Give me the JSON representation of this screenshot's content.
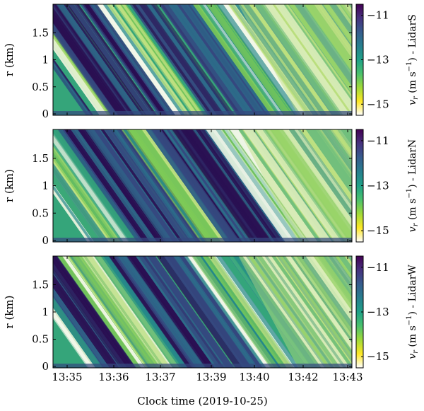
{
  "colormap": [
    "#440154",
    "#46327e",
    "#365c8d",
    "#277f8e",
    "#1fa187",
    "#4ac16d",
    "#a0da39",
    "#fde725",
    "#ffffff"
  ],
  "panel_colors": [
    "#2a0f52",
    "#35487f",
    "#2d6b8a",
    "#24878a",
    "#35a57a",
    "#7cc957",
    "#bde07f",
    "#f3f7e9"
  ],
  "chart_data": [
    {
      "type": "heatmap",
      "panel": "LidarS",
      "title": "",
      "xlabel": "Clock time (2019-10-25)",
      "ylabel": "r (km)",
      "ylim": [
        0,
        2.0
      ],
      "yticks": [
        0,
        0.5,
        1,
        1.5
      ],
      "ytick_labels": [
        "0",
        "0.5",
        "1",
        "1.5"
      ],
      "colorbar_label": "v_r (m s^-1) - LidarS",
      "colorbar_label_prefix": "v",
      "colorbar_label_sub": "r",
      "colorbar_label_mid": " (m s",
      "colorbar_label_sup": "−1",
      "colorbar_label_suffix": ") - LidarS",
      "colorbar_range": [
        -15.5,
        -10.5
      ],
      "colorbar_ticks": [
        -11,
        -13,
        -15
      ],
      "colorbar_tick_labels": [
        "−11",
        "−13",
        "−15"
      ],
      "colorscale": "viridis_r",
      "description_values": {
        "min": -15.5,
        "max": -10.5
      }
    },
    {
      "type": "heatmap",
      "panel": "LidarN",
      "title": "",
      "xlabel": "Clock time (2019-10-25)",
      "ylabel": "r (km)",
      "ylim": [
        0,
        2.0
      ],
      "yticks": [
        0,
        0.5,
        1,
        1.5
      ],
      "ytick_labels": [
        "0",
        "0.5",
        "1",
        "1.5"
      ],
      "colorbar_label": "v_r (m s^-1) - LidarN",
      "colorbar_label_prefix": "v",
      "colorbar_label_sub": "r",
      "colorbar_label_mid": " (m s",
      "colorbar_label_sup": "−1",
      "colorbar_label_suffix": ") - LidarN",
      "colorbar_range": [
        -15.5,
        -10.5
      ],
      "colorbar_ticks": [
        -11,
        -13,
        -15
      ],
      "colorbar_tick_labels": [
        "−11",
        "−13",
        "−15"
      ],
      "colorscale": "viridis_r",
      "description_values": {
        "min": -15.5,
        "max": -10.5
      }
    },
    {
      "type": "heatmap",
      "panel": "LidarW",
      "title": "",
      "xlabel": "Clock time (2019-10-25)",
      "ylabel": "r (km)",
      "ylim": [
        0,
        2.0
      ],
      "yticks": [
        0,
        0.5,
        1,
        1.5
      ],
      "ytick_labels": [
        "0",
        "0.5",
        "1",
        "1.5"
      ],
      "colorbar_label": "v_r (m s^-1) - LidarW",
      "colorbar_label_prefix": "v",
      "colorbar_label_sub": "r",
      "colorbar_label_mid": " (m s",
      "colorbar_label_sup": "−1",
      "colorbar_label_suffix": ") - LidarW",
      "colorbar_range": [
        -15.5,
        -10.5
      ],
      "colorbar_ticks": [
        -11,
        -13,
        -15
      ],
      "colorbar_tick_labels": [
        "−11",
        "−13",
        "−15"
      ],
      "colorscale": "viridis_r",
      "description_values": {
        "min": -15.5,
        "max": -10.5
      }
    }
  ],
  "x_axis": {
    "ticks": [
      "13:35",
      "13:36",
      "13:37",
      "13:39",
      "13:40",
      "13:42",
      "13:43"
    ],
    "label": "Clock time (2019-10-25)"
  }
}
